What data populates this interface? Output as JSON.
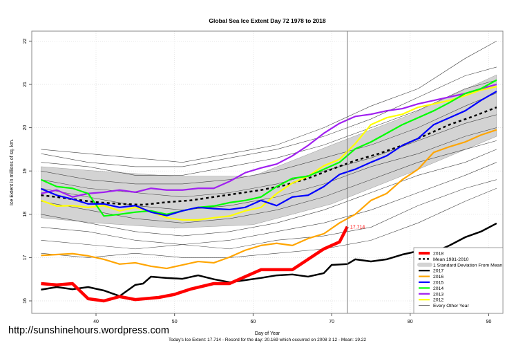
{
  "chart_data": {
    "type": "line",
    "title": "Global Sea Ice Extent Day 72 1978 to 2018",
    "xlabel": "Day of Year",
    "ylabel": "Ice Extent in millions of sq. km.",
    "xlim": [
      32,
      92
    ],
    "ylim": [
      15.7,
      22.2
    ],
    "xticks": [
      40,
      50,
      60,
      70,
      80,
      90
    ],
    "yticks": [
      16,
      17,
      18,
      19,
      20,
      21,
      22
    ],
    "grid": true,
    "legend_position": "bottom-right",
    "current_day": 72,
    "annotation": {
      "day": 72,
      "value": 17.714,
      "text": "17.714",
      "color": "#ff0000"
    },
    "footer": "Today's Ice Extent: 17.714  - Record for the day: 20.169 which occurred on 2008 3 12  - Mean: 19.22",
    "sd_band": {
      "name": "1 Standard Deviation From Mean",
      "color": "#d3d3d3",
      "x": [
        33,
        40,
        50,
        60,
        70,
        80,
        91
      ],
      "upper": [
        19.1,
        19.0,
        18.88,
        18.88,
        19.6,
        20.3,
        21.22
      ],
      "lower": [
        17.92,
        17.8,
        17.68,
        17.76,
        18.24,
        18.96,
        19.8
      ]
    },
    "mean": {
      "name": "Mean 1981-2010",
      "x": [
        33,
        35,
        37,
        40,
        43,
        46,
        49,
        52,
        55,
        58,
        61,
        64,
        67,
        70,
        73,
        76,
        79,
        82,
        85,
        88,
        91
      ],
      "y": [
        18.44,
        18.4,
        18.35,
        18.28,
        18.24,
        18.22,
        18.28,
        18.32,
        18.4,
        18.48,
        18.56,
        18.67,
        18.83,
        19.04,
        19.24,
        19.4,
        19.59,
        19.83,
        20.07,
        20.26,
        20.47
      ]
    },
    "other_years": {
      "name": "Every Other Year",
      "x": [
        33,
        39,
        45,
        51,
        57,
        63,
        69,
        75,
        81,
        87,
        91
      ],
      "lines": [
        [
          19.5,
          19.4,
          19.3,
          19.2,
          19.4,
          19.6,
          20.0,
          20.5,
          20.9,
          21.6,
          22.0
        ],
        [
          19.4,
          19.2,
          19.1,
          19.1,
          19.3,
          19.5,
          19.8,
          20.2,
          20.7,
          21.2,
          21.4
        ],
        [
          19.2,
          19.1,
          18.9,
          18.9,
          19.1,
          19.3,
          19.6,
          20.0,
          20.4,
          20.9,
          21.1
        ],
        [
          19.0,
          18.8,
          18.7,
          18.7,
          18.8,
          19.0,
          19.3,
          19.6,
          20.0,
          20.5,
          20.8
        ],
        [
          18.8,
          18.6,
          18.5,
          18.4,
          18.5,
          18.7,
          19.0,
          19.3,
          19.7,
          20.1,
          20.3
        ],
        [
          18.6,
          18.4,
          18.2,
          18.1,
          18.2,
          18.4,
          18.7,
          19.1,
          19.4,
          19.8,
          20.0
        ],
        [
          18.3,
          18.1,
          17.9,
          17.8,
          17.9,
          18.1,
          18.4,
          18.8,
          19.2,
          19.5,
          19.7
        ],
        [
          18.0,
          17.8,
          17.6,
          17.5,
          17.6,
          17.8,
          18.1,
          18.5,
          18.9,
          19.2,
          19.5
        ],
        [
          17.7,
          17.6,
          17.4,
          17.3,
          17.4,
          17.6,
          17.8,
          18.1,
          18.5,
          18.9,
          19.2
        ],
        [
          17.4,
          17.3,
          17.2,
          17.3,
          17.2,
          17.4,
          17.5,
          17.7,
          18.2,
          18.6,
          18.8
        ],
        [
          17.1,
          17.0,
          17.1,
          17.0,
          17.0,
          17.1,
          17.2,
          17.4,
          17.8,
          18.3,
          18.6
        ]
      ]
    },
    "series": [
      {
        "name": "2012",
        "color": "#ffff00",
        "x": [
          33,
          35,
          37,
          39,
          41,
          43,
          45,
          47,
          49,
          51,
          53,
          55,
          57,
          59,
          61,
          63,
          65,
          67,
          69,
          71,
          73,
          75,
          77,
          79,
          81,
          83,
          85,
          87,
          89,
          91
        ],
        "y": [
          18.32,
          18.19,
          18.2,
          18.16,
          18.2,
          18.08,
          18.16,
          18.06,
          17.92,
          17.87,
          17.87,
          17.92,
          17.96,
          18.08,
          18.16,
          18.48,
          18.72,
          18.88,
          19.12,
          19.27,
          19.63,
          20.07,
          20.23,
          20.31,
          20.47,
          20.55,
          20.63,
          20.74,
          20.87,
          20.95
        ]
      },
      {
        "name": "2013",
        "color": "#a020f0",
        "x": [
          33,
          35,
          37,
          39,
          41,
          43,
          45,
          47,
          49,
          51,
          53,
          55,
          57,
          59,
          61,
          63,
          65,
          67,
          69,
          71,
          73,
          75,
          77,
          79,
          81,
          83,
          85,
          87,
          89,
          91
        ],
        "y": [
          18.48,
          18.56,
          18.4,
          18.48,
          18.51,
          18.56,
          18.51,
          18.6,
          18.56,
          18.56,
          18.6,
          18.6,
          18.76,
          18.96,
          19.07,
          19.16,
          19.35,
          19.59,
          19.87,
          20.1,
          20.26,
          20.31,
          20.39,
          20.44,
          20.55,
          20.63,
          20.71,
          20.79,
          20.9,
          21.0
        ]
      },
      {
        "name": "2014",
        "color": "#00ff00",
        "x": [
          33,
          35,
          37,
          39,
          41,
          43,
          45,
          47,
          49,
          51,
          53,
          55,
          57,
          59,
          61,
          63,
          65,
          67,
          69,
          71,
          73,
          75,
          77,
          79,
          81,
          83,
          85,
          87,
          89,
          91
        ],
        "y": [
          18.8,
          18.64,
          18.6,
          18.48,
          17.96,
          18.0,
          18.05,
          18.08,
          18.0,
          18.08,
          18.16,
          18.19,
          18.27,
          18.32,
          18.4,
          18.64,
          18.83,
          18.88,
          19.04,
          19.2,
          19.51,
          19.67,
          19.87,
          20.07,
          20.23,
          20.39,
          20.58,
          20.79,
          20.9,
          21.1
        ]
      },
      {
        "name": "2015",
        "color": "#0000ff",
        "x": [
          33,
          35,
          37,
          39,
          41,
          43,
          45,
          47,
          49,
          51,
          53,
          55,
          57,
          59,
          61,
          63,
          65,
          67,
          69,
          71,
          73,
          75,
          77,
          79,
          81,
          83,
          85,
          87,
          89,
          91
        ],
        "y": [
          18.59,
          18.44,
          18.35,
          18.24,
          18.24,
          18.16,
          18.2,
          18.05,
          17.97,
          18.08,
          18.16,
          18.13,
          18.11,
          18.16,
          18.32,
          18.2,
          18.4,
          18.44,
          18.64,
          18.92,
          19.04,
          19.2,
          19.35,
          19.59,
          19.75,
          20.07,
          20.23,
          20.39,
          20.63,
          20.84
        ]
      },
      {
        "name": "2016",
        "color": "#ffa500",
        "x": [
          33,
          35,
          37,
          39,
          41,
          43,
          45,
          47,
          49,
          51,
          53,
          55,
          57,
          59,
          61,
          63,
          65,
          67,
          69,
          71,
          73,
          75,
          77,
          79,
          81,
          83,
          85,
          87,
          89,
          91
        ],
        "y": [
          17.05,
          17.07,
          17.09,
          17.04,
          16.96,
          16.85,
          16.88,
          16.8,
          16.75,
          16.83,
          16.91,
          16.88,
          17.01,
          17.17,
          17.28,
          17.33,
          17.28,
          17.44,
          17.55,
          17.8,
          18.0,
          18.32,
          18.48,
          18.8,
          19.04,
          19.43,
          19.56,
          19.67,
          19.83,
          19.95
        ]
      },
      {
        "name": "2017",
        "color": "#000000",
        "x": [
          33,
          35,
          37,
          39,
          41,
          43,
          45,
          46,
          47,
          49,
          51,
          53,
          55,
          57,
          59,
          61,
          63,
          65,
          67,
          69,
          70,
          72,
          73,
          75,
          77,
          79,
          81,
          83,
          85,
          87,
          89,
          91
        ],
        "y": [
          16.26,
          16.32,
          16.27,
          16.32,
          16.24,
          16.11,
          16.37,
          16.4,
          16.56,
          16.53,
          16.51,
          16.59,
          16.5,
          16.43,
          16.48,
          16.53,
          16.59,
          16.61,
          16.56,
          16.64,
          16.83,
          16.85,
          16.96,
          16.91,
          16.96,
          17.07,
          17.15,
          17.12,
          17.28,
          17.47,
          17.6,
          17.79
        ]
      },
      {
        "name": "2018",
        "color": "#ff0000",
        "x": [
          33,
          35,
          37,
          39,
          41,
          43,
          45,
          48,
          50,
          52,
          55,
          57,
          59,
          61,
          63,
          65,
          67,
          69,
          71,
          72
        ],
        "y": [
          16.4,
          16.37,
          16.4,
          16.05,
          16.0,
          16.1,
          16.03,
          16.08,
          16.15,
          16.27,
          16.4,
          16.4,
          16.56,
          16.72,
          16.72,
          16.72,
          16.96,
          17.2,
          17.36,
          17.714
        ]
      }
    ],
    "legend": [
      {
        "label": "2018",
        "color": "#ff0000",
        "style": "thick"
      },
      {
        "label": "Mean 1981-2010",
        "color": "#000000",
        "style": "dashed"
      },
      {
        "label": "1 Standard Deviation From Mean",
        "color": "#d3d3d3",
        "style": "band"
      },
      {
        "label": "2017",
        "color": "#000000",
        "style": "line"
      },
      {
        "label": "2016",
        "color": "#ffa500",
        "style": "line"
      },
      {
        "label": "2015",
        "color": "#0000ff",
        "style": "line"
      },
      {
        "label": "2014",
        "color": "#00ff00",
        "style": "line"
      },
      {
        "label": "2013",
        "color": "#a020f0",
        "style": "line"
      },
      {
        "label": "2012",
        "color": "#ffff00",
        "style": "line"
      },
      {
        "label": "Every Other Year",
        "color": "#555555",
        "style": "thin"
      }
    ]
  },
  "watermark": "http://sunshinehours.wordpress.com"
}
